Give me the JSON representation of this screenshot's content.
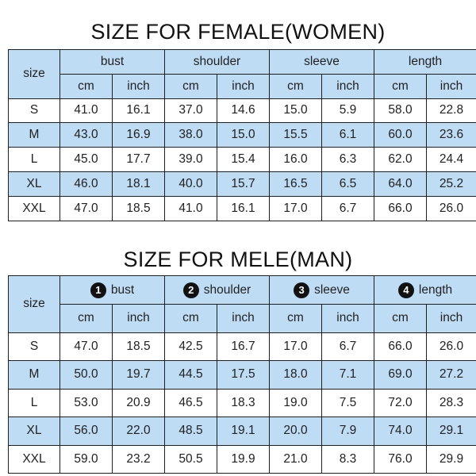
{
  "female": {
    "title": "SIZE FOR FEMALE(WOMEN)",
    "size_label": "size",
    "groups": [
      "bust",
      "shoulder",
      "sleeve",
      "length"
    ],
    "unit_cm": "cm",
    "unit_inch": "inch",
    "rows": [
      [
        "S",
        "41.0",
        "16.1",
        "37.0",
        "14.6",
        "15.0",
        "5.9",
        "58.0",
        "22.8"
      ],
      [
        "M",
        "43.0",
        "16.9",
        "38.0",
        "15.0",
        "15.5",
        "6.1",
        "60.0",
        "23.6"
      ],
      [
        "L",
        "45.0",
        "17.7",
        "39.0",
        "15.4",
        "16.0",
        "6.3",
        "62.0",
        "24.4"
      ],
      [
        "XL",
        "46.0",
        "18.1",
        "40.0",
        "15.7",
        "16.5",
        "6.5",
        "64.0",
        "25.2"
      ],
      [
        "XXL",
        "47.0",
        "18.5",
        "41.0",
        "16.1",
        "17.0",
        "6.7",
        "66.0",
        "26.0"
      ]
    ]
  },
  "male": {
    "title": "SIZE FOR MELE(MAN)",
    "size_label": "size",
    "badges": [
      "1",
      "2",
      "3",
      "4"
    ],
    "groups": [
      "bust",
      "shoulder",
      "sleeve",
      "length"
    ],
    "unit_cm": "cm",
    "unit_inch": "inch",
    "rows": [
      [
        "S",
        "47.0",
        "18.5",
        "42.5",
        "16.7",
        "17.0",
        "6.7",
        "66.0",
        "26.0"
      ],
      [
        "M",
        "50.0",
        "19.7",
        "44.5",
        "17.5",
        "18.0",
        "7.1",
        "69.0",
        "27.2"
      ],
      [
        "L",
        "53.0",
        "20.9",
        "46.5",
        "18.3",
        "19.0",
        "7.5",
        "72.0",
        "28.3"
      ],
      [
        "XL",
        "56.0",
        "22.0",
        "48.5",
        "19.1",
        "20.0",
        "7.9",
        "74.0",
        "29.1"
      ],
      [
        "XXL",
        "59.0",
        "23.2",
        "50.5",
        "19.9",
        "21.0",
        "8.3",
        "76.0",
        "29.9"
      ]
    ]
  },
  "colors": {
    "header_fill": "#bfdcf5",
    "alt_row_fill": "#bfdcf5",
    "border": "#1f1f1f"
  }
}
